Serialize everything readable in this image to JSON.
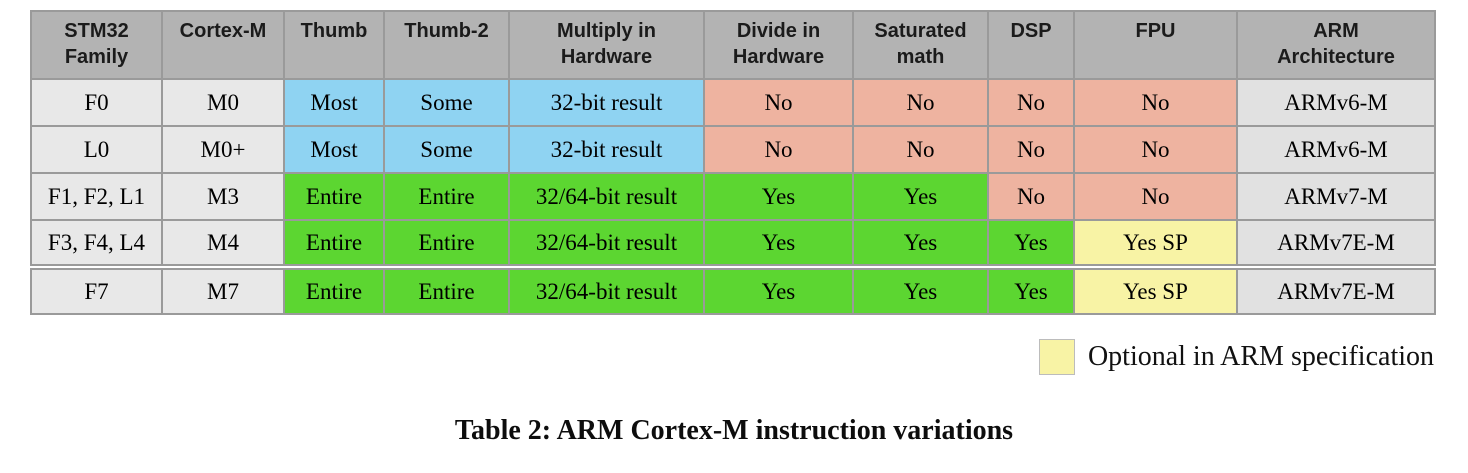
{
  "caption": "Table 2: ARM Cortex-M instruction variations",
  "legend": {
    "label": "Optional in ARM specification",
    "swatch_meaning": "optional-in-arm-specification",
    "swatch_color": "#f8f3a5"
  },
  "colors": {
    "header_bg": "#b3b3b3",
    "family_bg": "#e8e8e8",
    "arch_bg": "#e1e1e1",
    "blue_bg": "#8fd3f2",
    "green_bg": "#5cd631",
    "salmon_bg": "#eeb3a0",
    "yellow_bg": "#f8f3a5",
    "border": "#9a9a9a"
  },
  "table": {
    "columns": [
      "STM32\nFamily",
      "Cortex-M",
      "Thumb",
      "Thumb-2",
      "Multiply in\nHardware",
      "Divide in\nHardware",
      "Saturated\nmath",
      "DSP",
      "FPU",
      "ARM\nArchitecture"
    ],
    "rows": [
      {
        "cells": [
          {
            "text": "F0",
            "style": "family"
          },
          {
            "text": "M0",
            "style": "family"
          },
          {
            "text": "Most",
            "style": "blue"
          },
          {
            "text": "Some",
            "style": "blue"
          },
          {
            "text": "32-bit result",
            "style": "blue"
          },
          {
            "text": "No",
            "style": "salmon"
          },
          {
            "text": "No",
            "style": "salmon"
          },
          {
            "text": "No",
            "style": "salmon"
          },
          {
            "text": "No",
            "style": "salmon"
          },
          {
            "text": "ARMv6-M",
            "style": "arch"
          }
        ]
      },
      {
        "cells": [
          {
            "text": "L0",
            "style": "family"
          },
          {
            "text": "M0+",
            "style": "family"
          },
          {
            "text": "Most",
            "style": "blue"
          },
          {
            "text": "Some",
            "style": "blue"
          },
          {
            "text": "32-bit result",
            "style": "blue"
          },
          {
            "text": "No",
            "style": "salmon"
          },
          {
            "text": "No",
            "style": "salmon"
          },
          {
            "text": "No",
            "style": "salmon"
          },
          {
            "text": "No",
            "style": "salmon"
          },
          {
            "text": "ARMv6-M",
            "style": "arch"
          }
        ]
      },
      {
        "cells": [
          {
            "text": "F1, F2, L1",
            "style": "family"
          },
          {
            "text": "M3",
            "style": "family"
          },
          {
            "text": "Entire",
            "style": "green"
          },
          {
            "text": "Entire",
            "style": "green"
          },
          {
            "text": "32/64-bit result",
            "style": "green"
          },
          {
            "text": "Yes",
            "style": "green"
          },
          {
            "text": "Yes",
            "style": "green"
          },
          {
            "text": "No",
            "style": "salmon"
          },
          {
            "text": "No",
            "style": "salmon"
          },
          {
            "text": "ARMv7-M",
            "style": "arch"
          }
        ]
      },
      {
        "cells": [
          {
            "text": "F3, F4, L4",
            "style": "family"
          },
          {
            "text": "M4",
            "style": "family"
          },
          {
            "text": "Entire",
            "style": "green"
          },
          {
            "text": "Entire",
            "style": "green"
          },
          {
            "text": "32/64-bit result",
            "style": "green"
          },
          {
            "text": "Yes",
            "style": "green"
          },
          {
            "text": "Yes",
            "style": "green"
          },
          {
            "text": "Yes",
            "style": "green"
          },
          {
            "text": "Yes SP",
            "style": "yellow"
          },
          {
            "text": "ARMv7E-M",
            "style": "arch"
          }
        ]
      },
      {
        "cells": [
          {
            "text": "F7",
            "style": "family"
          },
          {
            "text": "M7",
            "style": "family"
          },
          {
            "text": "Entire",
            "style": "green"
          },
          {
            "text": "Entire",
            "style": "green"
          },
          {
            "text": "32/64-bit result",
            "style": "green"
          },
          {
            "text": "Yes",
            "style": "green"
          },
          {
            "text": "Yes",
            "style": "green"
          },
          {
            "text": "Yes",
            "style": "green"
          },
          {
            "text": "Yes SP",
            "style": "yellow"
          },
          {
            "text": "ARMv7E-M",
            "style": "arch"
          }
        ]
      }
    ]
  }
}
